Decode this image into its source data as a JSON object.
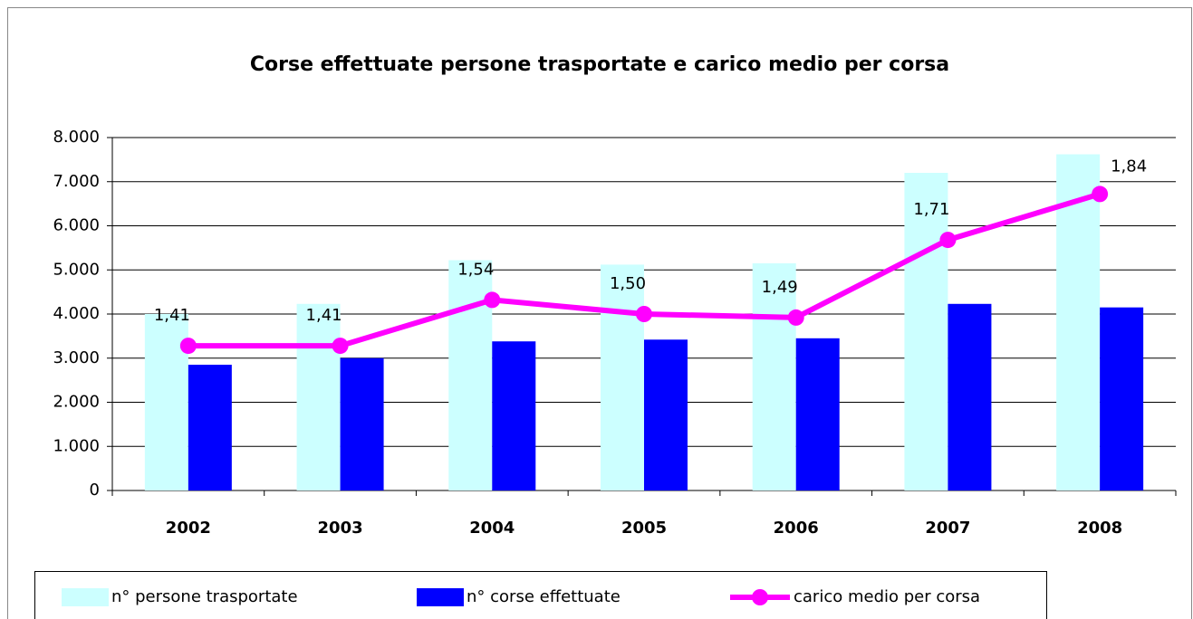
{
  "chart_data": {
    "type": "bar_line",
    "title": "Corse effettuate persone trasportate e carico medio per corsa",
    "categories": [
      "2002",
      "2003",
      "2004",
      "2005",
      "2006",
      "2007",
      "2008"
    ],
    "series": [
      {
        "name": "n° persone trasportate",
        "color": "#ccffff",
        "type": "bar",
        "values": [
          4000,
          4230,
          5220,
          5120,
          5150,
          7200,
          7620
        ]
      },
      {
        "name": "n° corse effettuate",
        "color": "#0000ff",
        "type": "bar",
        "values": [
          2850,
          3000,
          3380,
          3420,
          3450,
          4230,
          4150
        ]
      },
      {
        "name": "carico medio per corsa",
        "color": "#ff00ff",
        "type": "line",
        "axis": "y2",
        "values": [
          1.41,
          1.41,
          1.54,
          1.5,
          1.49,
          1.71,
          1.84
        ],
        "value_labels": [
          "1,41",
          "1,41",
          "1,54",
          "1,50",
          "1,49",
          "1,71",
          "1,84"
        ]
      }
    ],
    "ylim": [
      0,
      8000
    ],
    "yticks": [
      0,
      {
        "value": 1000,
        "label": "1.000"
      },
      {
        "value": 2000,
        "label": "2.000"
      },
      {
        "value": 3000,
        "label": "3.000"
      },
      {
        "value": 4000,
        "label": "4.000"
      },
      {
        "value": 5000,
        "label": "5.000"
      },
      {
        "value": 6000,
        "label": "6.000"
      },
      {
        "value": 7000,
        "label": "7.000"
      },
      {
        "value": 8000,
        "label": "8.000"
      }
    ],
    "y2lim": [
      1,
      2
    ],
    "grid": true,
    "legend": "bottom"
  }
}
